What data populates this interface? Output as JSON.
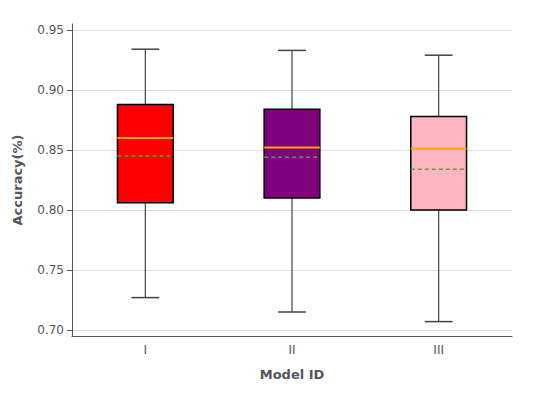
{
  "chart_data": {
    "type": "box",
    "xlabel": "Model ID",
    "ylabel": "Accuracy(%)",
    "categories": [
      "I",
      "II",
      "III"
    ],
    "colors": [
      "#FF0000",
      "#800080",
      "#FFB6C1"
    ],
    "whislo": [
      0.727,
      0.715,
      0.707
    ],
    "q1": [
      0.806,
      0.81,
      0.8
    ],
    "median": {
      "values": [
        0.86,
        0.852,
        0.851
      ],
      "color": "#FFA500",
      "line_style": "solid"
    },
    "mean": {
      "values": [
        0.845,
        0.844,
        0.834
      ],
      "color": "#44AA44",
      "line_style": "dashed"
    },
    "q3": [
      0.888,
      0.884,
      0.878
    ],
    "whishi": [
      0.934,
      0.933,
      0.929
    ],
    "ylim": [
      0.695,
      0.955
    ],
    "yticks": [
      {
        "value": 0.7,
        "label": "0.70"
      },
      0.75,
      {
        "value": 0.8,
        "label": "0.80"
      },
      0.85,
      {
        "value": 0.9,
        "label": "0.90"
      },
      0.95
    ],
    "grid": true
  }
}
